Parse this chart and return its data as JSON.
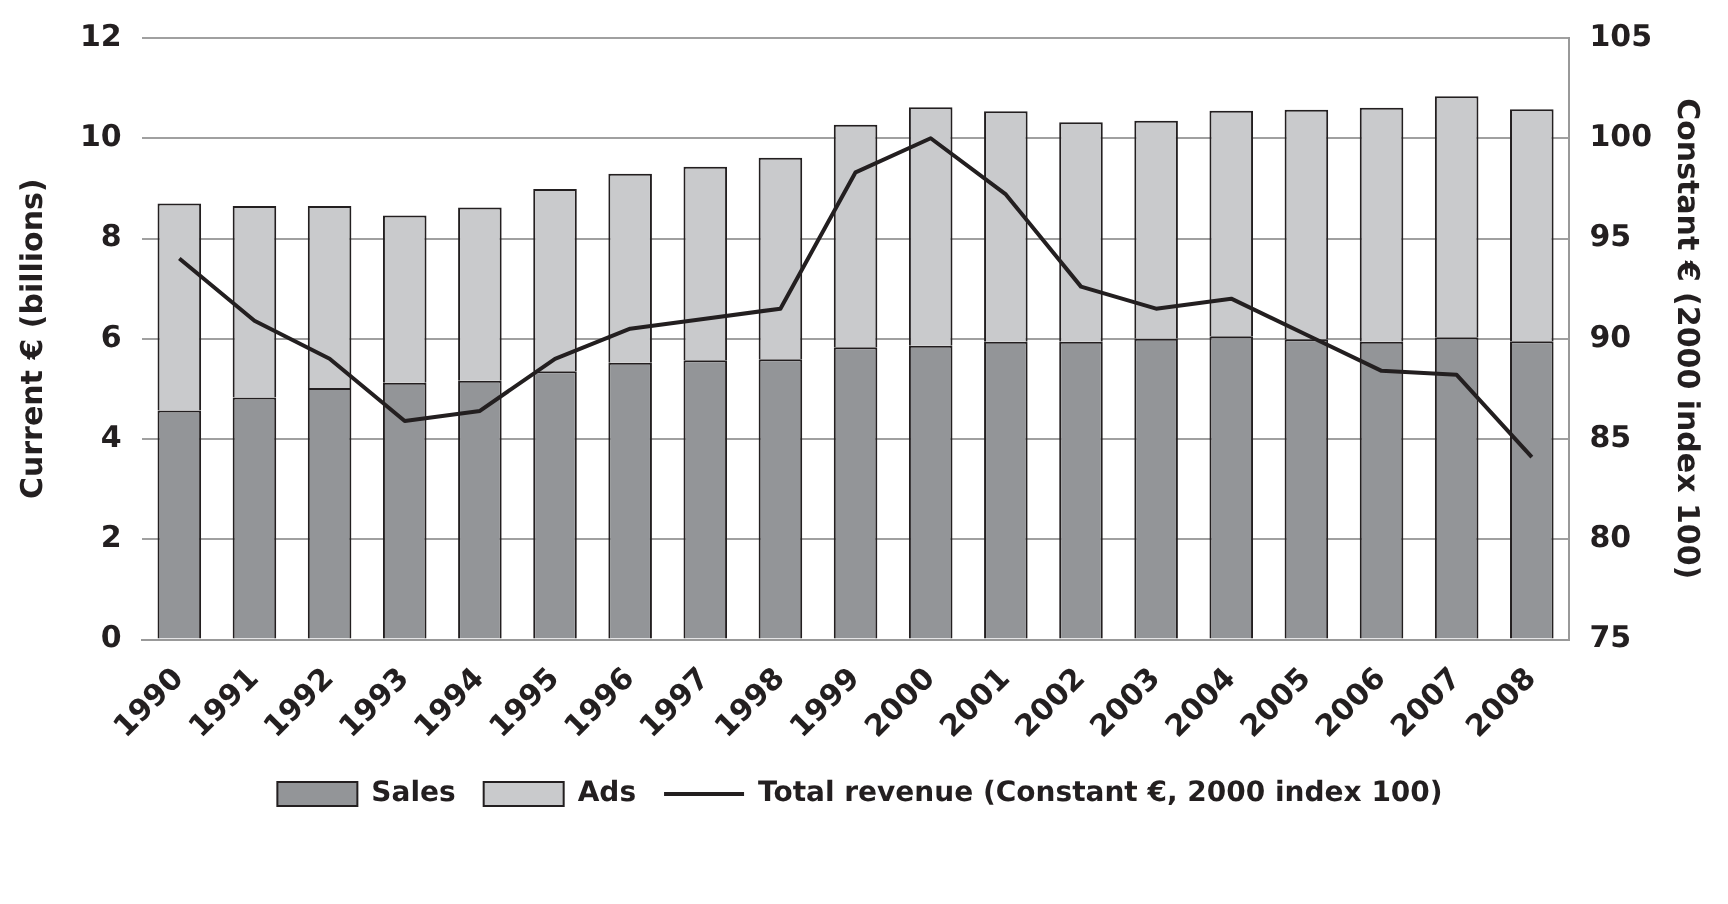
{
  "chart_data": {
    "type": "bar",
    "stacked": true,
    "categories": [
      "1990",
      "1991",
      "1992",
      "1993",
      "1994",
      "1995",
      "1996",
      "1997",
      "1998",
      "1999",
      "2000",
      "2001",
      "2002",
      "2003",
      "2004",
      "2005",
      "2006",
      "2007",
      "2008"
    ],
    "series": [
      {
        "name": "Sales",
        "color": "#939598",
        "values": [
          4.57,
          4.83,
          5.02,
          5.12,
          5.16,
          5.35,
          5.52,
          5.57,
          5.59,
          5.83,
          5.86,
          5.94,
          5.94,
          6.0,
          6.05,
          5.99,
          5.94,
          6.03,
          5.95
        ]
      },
      {
        "name": "Ads",
        "color": "#c9cacc",
        "values": [
          4.13,
          3.82,
          3.63,
          3.34,
          3.46,
          3.64,
          3.77,
          3.86,
          4.02,
          4.44,
          4.76,
          4.6,
          4.38,
          4.35,
          4.5,
          4.58,
          4.67,
          4.81,
          4.63
        ]
      },
      {
        "name": "Total revenue (Constant €, 2000 index 100)",
        "type": "line",
        "axis": "y2",
        "color": "#231f20",
        "values": [
          94.0,
          90.9,
          89.0,
          85.9,
          86.4,
          89.0,
          90.5,
          91.0,
          91.5,
          98.3,
          100.0,
          97.2,
          92.6,
          91.5,
          92.0,
          90.2,
          88.4,
          88.2,
          84.1
        ]
      }
    ],
    "ylabel": "Current € (billions)",
    "y2label": "Constant € (2000 index 100)",
    "ylim": [
      0,
      12
    ],
    "yticks": [
      0,
      2,
      4,
      6,
      8,
      10,
      12
    ],
    "y2lim": [
      75,
      105
    ],
    "y2ticks": [
      75,
      80,
      85,
      90,
      95,
      100,
      105
    ],
    "grid": "y",
    "legend": "bottom",
    "marker": "none"
  }
}
